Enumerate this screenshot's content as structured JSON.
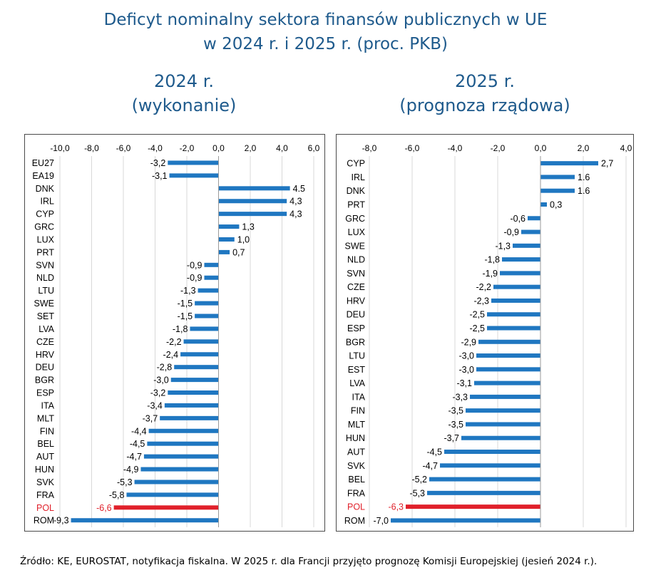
{
  "title_line1": "Deficyt nominalny sektora finansów publicznych w UE",
  "title_line2": "w 2024 r. i 2025 r. (proc. PKB)",
  "source_note": "Źródło: KE, EUROSTAT, notyfikacja fiskalna. W 2025 r. dla Francji przyjęto prognozę Komisji Europejskiej (jesień 2024 r.).",
  "colors": {
    "bar": "#1f77c1",
    "highlight": "#e0202a",
    "title": "#1e5a8c",
    "grid": "#d8d8d8"
  },
  "chart_data": [
    {
      "type": "bar",
      "orientation": "horizontal",
      "title_line1": "2024 r.",
      "title_line2": "(wykonanie)",
      "xlim": [
        -10,
        6
      ],
      "xticks": [
        -10,
        -8,
        -6,
        -4,
        -2,
        0,
        2,
        4,
        6
      ],
      "xtick_labels": [
        "-10,0",
        "-8,0",
        "-6,0",
        "-4,0",
        "-2,0",
        "0,0",
        "2,0",
        "4,0",
        "6,0"
      ],
      "grid": "vertical",
      "highlight": "POL",
      "categories": [
        "EU27",
        "EA19",
        "DNK",
        "IRL",
        "CYP",
        "GRC",
        "LUX",
        "PRT",
        "SVN",
        "NLD",
        "LTU",
        "SWE",
        "SET",
        "LVA",
        "CZE",
        "HRV",
        "DEU",
        "BGR",
        "ESP",
        "ITA",
        "MLT",
        "FIN",
        "BEL",
        "AUT",
        "HUN",
        "SVK",
        "FRA",
        "POL",
        "ROM"
      ],
      "values": [
        -3.2,
        -3.1,
        4.5,
        4.3,
        4.3,
        1.3,
        1.0,
        0.7,
        -0.9,
        -0.9,
        -1.3,
        -1.5,
        -1.5,
        -1.8,
        -2.2,
        -2.4,
        -2.8,
        -3.0,
        -3.2,
        -3.4,
        -3.7,
        -4.4,
        -4.5,
        -4.7,
        -4.9,
        -5.3,
        -5.8,
        -6.6,
        -9.3
      ],
      "value_labels": [
        "-3,2",
        "-3,1",
        "4.5",
        "4,3",
        "4,3",
        "1,3",
        "1,0",
        "0,7",
        "-0,9",
        "-0,9",
        "-1,3",
        "-1,5",
        "-1,5",
        "-1,8",
        "-2,2",
        "-2,4",
        "-2,8",
        "-3,0",
        "-3,2",
        "-3,4",
        "-3,7",
        "-4,4",
        "-4,5",
        "-4,7",
        "-4,9",
        "-5,3",
        "-5,8",
        "-6,6",
        "-9,3"
      ]
    },
    {
      "type": "bar",
      "orientation": "horizontal",
      "title_line1": "2025 r.",
      "title_line2": "(prognoza rządowa)",
      "xlim": [
        -8,
        4
      ],
      "xticks": [
        -8,
        -6,
        -4,
        -2,
        0,
        2,
        4
      ],
      "xtick_labels": [
        "-8,0",
        "-6,0",
        "-4,0",
        "-2,0",
        "0,0",
        "2,0",
        "4,0"
      ],
      "grid": "vertical",
      "highlight": "POL",
      "categories": [
        "CYP",
        "IRL",
        "DNK",
        "PRT",
        "GRC",
        "LUX",
        "SWE",
        "NLD",
        "SVN",
        "CZE",
        "HRV",
        "DEU",
        "ESP",
        "BGR",
        "LTU",
        "EST",
        "LVA",
        "ITA",
        "FIN",
        "MLT",
        "HUN",
        "AUT",
        "SVK",
        "BEL",
        "FRA",
        "POL",
        "ROM"
      ],
      "values": [
        2.7,
        1.6,
        1.6,
        0.3,
        -0.6,
        -0.9,
        -1.3,
        -1.8,
        -1.9,
        -2.2,
        -2.3,
        -2.5,
        -2.5,
        -2.9,
        -3.0,
        -3.0,
        -3.1,
        -3.3,
        -3.5,
        -3.5,
        -3.7,
        -4.5,
        -4.7,
        -5.2,
        -5.3,
        -6.3,
        -7.0
      ],
      "value_labels": [
        "2,7",
        "1.6",
        "1.6",
        "0,3",
        "-0,6",
        "-0,9",
        "-1,3",
        "-1,8",
        "-1,9",
        "-2,2",
        "-2,3",
        "-2,5",
        "-2,5",
        "-2,9",
        "-3,0",
        "-3,0",
        "-3,1",
        "-3,3",
        "-3,5",
        "-3,5",
        "-3,7",
        "-4,5",
        "-4,7",
        "-5,2",
        "-5,3",
        "-6,3",
        "-7,0"
      ]
    }
  ]
}
